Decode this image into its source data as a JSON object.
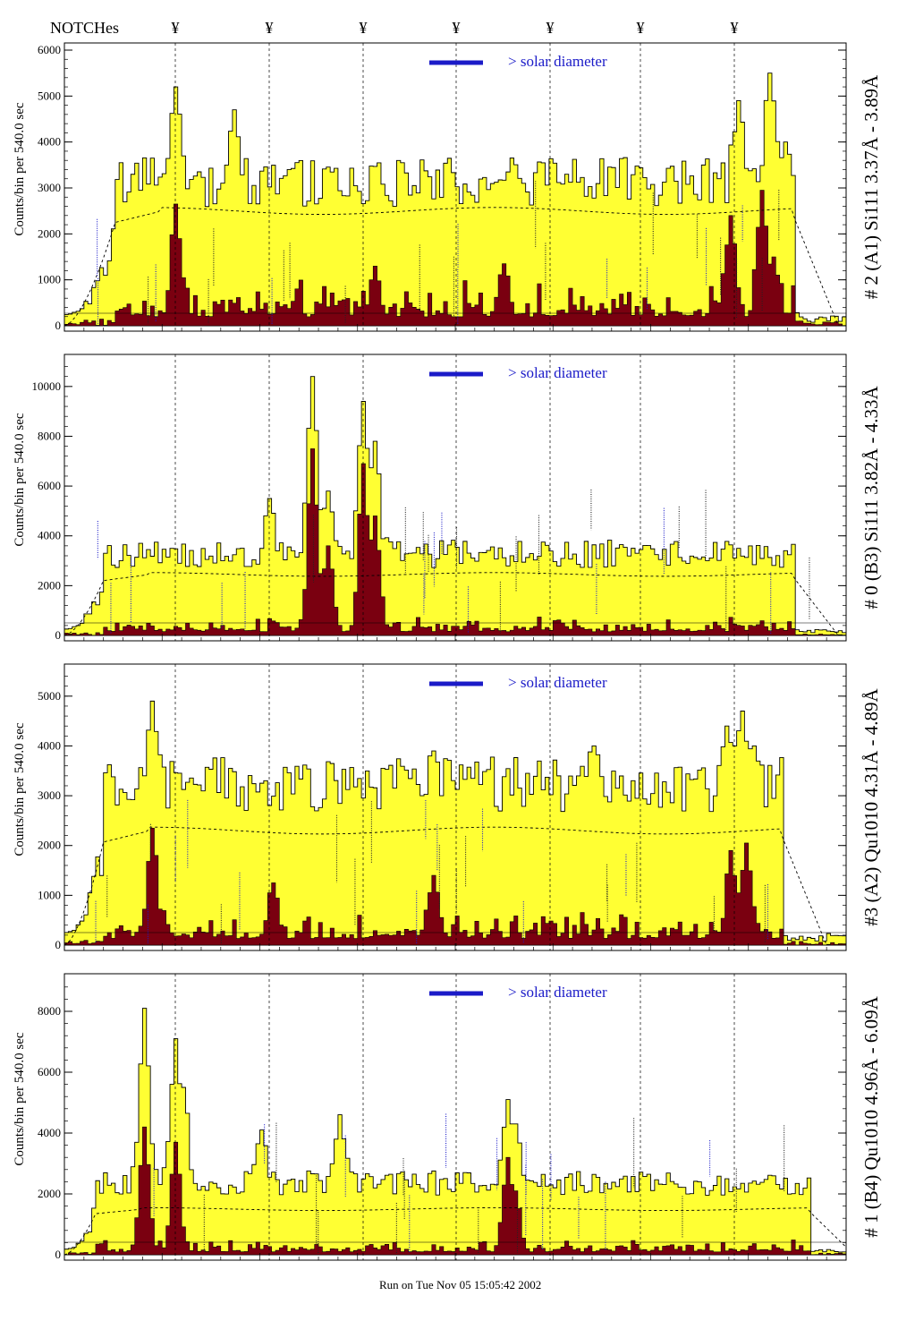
{
  "header": {
    "notches_label": "NOTCHes",
    "notch_symbol": "¥",
    "notch_count": 7
  },
  "footer": {
    "run_text": "Run on Tue Nov 05 15:05:42 2002"
  },
  "colors": {
    "total": "#ffff33",
    "sub": "#7a0010",
    "legend_line": "#1b1bc8",
    "legend_text": "#1b1bc8",
    "fit": "#000000"
  },
  "chart_data": [
    {
      "type": "histogram",
      "ylabel": "Counts/bin per   540.0 sec",
      "right_label": "# 2 (A1) Si111  3.37Å - 3.89Å",
      "legend": "> solar diameter",
      "ylim": [
        0,
        6000
      ],
      "yticks": [
        0,
        1000,
        2000,
        3000,
        4000,
        5000,
        6000
      ],
      "bins": 200,
      "plateau": 2500,
      "total_level": 3050,
      "sub_level": 780,
      "start_bin": 13,
      "end_bin": 186,
      "total_peaks": [
        [
          28,
          5200
        ],
        [
          43,
          4700
        ],
        [
          114,
          3650
        ],
        [
          172,
          4900
        ],
        [
          180,
          5500
        ],
        [
          184,
          4000
        ]
      ],
      "sub_peaks": [
        [
          28,
          2650
        ],
        [
          79,
          1300
        ],
        [
          112,
          1350
        ],
        [
          170,
          2400
        ],
        [
          178,
          2950
        ],
        [
          181,
          1500
        ]
      ]
    },
    {
      "type": "histogram",
      "ylabel": "Counts/bin per   540.0 sec",
      "right_label": "# 0 (B3) Si111  3.82Å - 4.33Å",
      "legend": "> solar diameter",
      "ylim": [
        0,
        11000
      ],
      "yticks": [
        0,
        2000,
        4000,
        6000,
        8000,
        10000
      ],
      "bins": 200,
      "plateau": 2450,
      "total_level": 3200,
      "sub_level": 600,
      "start_bin": 10,
      "end_bin": 186,
      "total_peaks": [
        [
          52,
          5500
        ],
        [
          63,
          10400
        ],
        [
          67,
          5800
        ],
        [
          76,
          9400
        ],
        [
          79,
          7800
        ]
      ],
      "sub_peaks": [
        [
          63,
          7500
        ],
        [
          67,
          3600
        ],
        [
          76,
          6900
        ],
        [
          79,
          4800
        ]
      ]
    },
    {
      "type": "histogram",
      "ylabel": "Counts/bin per   540.0 sec",
      "right_label": "#3 (A2) Qu1010  4.31Å - 4.89Å",
      "legend": "> solar diameter",
      "ylim": [
        0,
        5500
      ],
      "yticks": [
        0,
        1000,
        2000,
        3000,
        4000,
        5000
      ],
      "bins": 200,
      "plateau": 2300,
      "total_level": 3150,
      "sub_level": 520,
      "start_bin": 10,
      "end_bin": 183,
      "total_peaks": [
        [
          22,
          4900
        ],
        [
          94,
          3900
        ],
        [
          135,
          4000
        ],
        [
          169,
          4400
        ],
        [
          173,
          4700
        ],
        [
          176,
          4000
        ]
      ],
      "sub_peaks": [
        [
          22,
          2350
        ],
        [
          53,
          1250
        ],
        [
          94,
          1400
        ],
        [
          170,
          1900
        ],
        [
          174,
          2050
        ]
      ]
    },
    {
      "type": "histogram",
      "ylabel": "Counts/bin per   540.0 sec",
      "right_label": "# 1 (B4) Qu1010 4.96Å - 6.09Å",
      "legend": "> solar diameter",
      "ylim": [
        0,
        9000
      ],
      "yticks": [
        0,
        2000,
        4000,
        6000,
        8000
      ],
      "bins": 200,
      "plateau": 1500,
      "total_level": 2300,
      "sub_level": 380,
      "start_bin": 8,
      "end_bin": 190,
      "total_peaks": [
        [
          20,
          8100
        ],
        [
          28,
          7100
        ],
        [
          30,
          5500
        ],
        [
          50,
          4100
        ],
        [
          70,
          4600
        ],
        [
          113,
          5100
        ],
        [
          115,
          4300
        ]
      ],
      "sub_peaks": [
        [
          20,
          4200
        ],
        [
          28,
          3700
        ],
        [
          113,
          3200
        ],
        [
          115,
          2100
        ]
      ]
    }
  ]
}
